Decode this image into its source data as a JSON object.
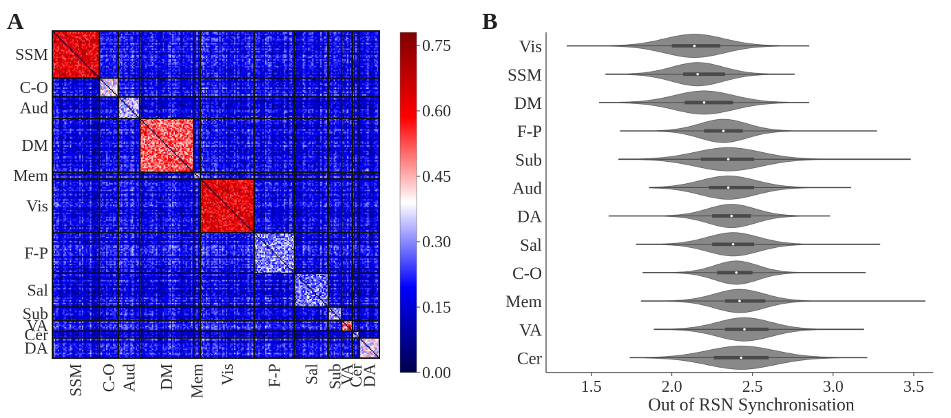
{
  "panels": {
    "a_label": "A",
    "b_label": "B"
  },
  "chart_data": [
    {
      "type": "heatmap",
      "panel": "A",
      "networks": [
        "SSM",
        "C-O",
        "Aud",
        "DM",
        "Mem",
        "Vis",
        "F-P",
        "Sal",
        "Sub",
        "VA",
        "Cer",
        "DA"
      ],
      "network_sizes": [
        35,
        14,
        16,
        40,
        5,
        40,
        30,
        25,
        10,
        8,
        5,
        15
      ],
      "diagonal_block_mean": [
        0.62,
        0.38,
        0.34,
        0.52,
        0.4,
        0.62,
        0.3,
        0.28,
        0.32,
        0.5,
        0.35,
        0.38
      ],
      "offdiag_mean": 0.18,
      "colorbar": {
        "range": [
          0.0,
          0.78
        ],
        "ticks": [
          0.0,
          0.15,
          0.3,
          0.45,
          0.6,
          0.75
        ],
        "tick_labels": [
          "0.00",
          "0.15",
          "0.30",
          "0.45",
          "0.60",
          "0.75"
        ],
        "colormap": "seismic",
        "colors": [
          "#00004c",
          "#0000ff",
          "#ffffff",
          "#ff0000",
          "#800000"
        ]
      }
    },
    {
      "type": "violin",
      "panel": "B",
      "categories": [
        "Vis",
        "SSM",
        "DM",
        "F-P",
        "Sub",
        "Aud",
        "DA",
        "Sal",
        "C-O",
        "Mem",
        "VA",
        "Cer"
      ],
      "min": [
        1.35,
        1.59,
        1.55,
        1.68,
        1.67,
        1.86,
        1.61,
        1.78,
        1.82,
        1.81,
        1.89,
        1.74
      ],
      "q1": [
        2.0,
        2.07,
        2.08,
        2.2,
        2.18,
        2.23,
        2.25,
        2.25,
        2.28,
        2.33,
        2.33,
        2.26
      ],
      "median": [
        2.14,
        2.16,
        2.2,
        2.32,
        2.35,
        2.35,
        2.37,
        2.38,
        2.4,
        2.42,
        2.45,
        2.43
      ],
      "q3": [
        2.3,
        2.33,
        2.38,
        2.44,
        2.51,
        2.51,
        2.49,
        2.51,
        2.5,
        2.58,
        2.6,
        2.6
      ],
      "max": [
        2.85,
        2.76,
        2.85,
        3.27,
        3.48,
        3.11,
        2.98,
        3.29,
        3.2,
        3.57,
        3.19,
        3.21
      ],
      "xlabel": "Out of RSN Synchronisation",
      "xlim": [
        1.22,
        3.62
      ],
      "xticks": [
        1.5,
        2.0,
        2.5,
        3.0,
        3.5
      ],
      "xtick_labels": [
        "1.5",
        "2.0",
        "2.5",
        "3.0",
        "3.5"
      ],
      "color": "#898989",
      "grid": false
    }
  ]
}
